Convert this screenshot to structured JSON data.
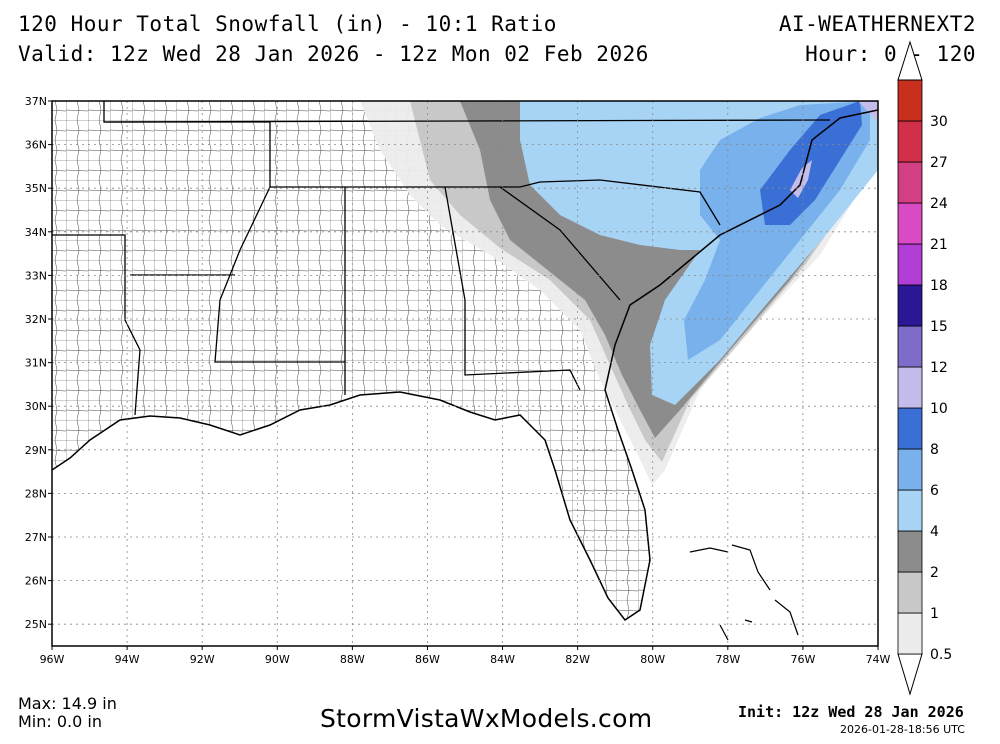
{
  "header": {
    "title_line1": "120 Hour Total Snowfall (in) - 10:1 Ratio",
    "title_line2": "Valid: 12z Wed 28 Jan 2026 - 12z Mon 02 Feb 2026",
    "model": "AI-WEATHERNEXT2",
    "hours": "Hour: 0 - 120"
  },
  "map": {
    "lat_labels": [
      "37N",
      "36N",
      "35N",
      "34N",
      "33N",
      "32N",
      "31N",
      "30N",
      "29N",
      "28N",
      "27N",
      "26N",
      "25N"
    ],
    "lon_labels": [
      "96W",
      "94W",
      "92W",
      "90W",
      "88W",
      "86W",
      "84W",
      "82W",
      "80W",
      "78W",
      "76W",
      "74W"
    ],
    "background_color": "#ffffff",
    "boundary_color": "#000000",
    "region": "Southeastern United States"
  },
  "colorbar": {
    "labels": [
      "0.5",
      "1",
      "2",
      "4",
      "6",
      "8",
      "10",
      "12",
      "15",
      "18",
      "21",
      "24",
      "27",
      "30"
    ],
    "colors": [
      "#ececec",
      "#c8c8c8",
      "#8c8c8c",
      "#a7d4f5",
      "#78b1ec",
      "#3a6fd6",
      "#c4bcea",
      "#7f6cc8",
      "#2a1796",
      "#b23ed6",
      "#d84bc4",
      "#d23f82",
      "#d22f4a",
      "#c8301e"
    ]
  },
  "footer": {
    "max": "Max: 14.9 in",
    "min": "Min: 0.0 in",
    "site": "StormVistaWxModels.com",
    "init": "Init: 12z Wed 28 Jan 2026",
    "generated": "2026-01-28-18:56 UTC"
  }
}
